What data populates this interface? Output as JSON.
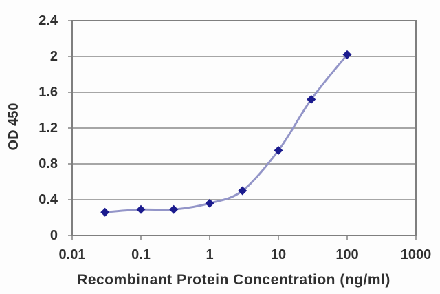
{
  "chart_data": {
    "type": "line",
    "title": "",
    "xlabel": "Recombinant Protein Concentration (ng/ml)",
    "ylabel": "OD 450",
    "xscale": "log",
    "xlim": [
      0.01,
      1000
    ],
    "ylim": [
      0,
      2.4
    ],
    "xticks": [
      0.01,
      0.1,
      1,
      10,
      100,
      1000
    ],
    "xtick_labels": [
      "0.01",
      "0.1",
      "1",
      "10",
      "100",
      "1000"
    ],
    "yticks": [
      0,
      0.4,
      0.8,
      1.2,
      1.6,
      2,
      2.4
    ],
    "ytick_labels": [
      "0",
      "0.4",
      "0.8",
      "1.2",
      "1.6",
      "2",
      "2.4"
    ],
    "grid": "horizontal",
    "legend_visible": false,
    "series": [
      {
        "name": "OD450",
        "x": [
          0.03,
          0.1,
          0.3,
          1,
          3,
          10,
          30,
          100
        ],
        "y": [
          0.26,
          0.29,
          0.29,
          0.36,
          0.5,
          0.95,
          1.52,
          2.02
        ],
        "marker": "diamond",
        "line_color": "#9395c8",
        "marker_color": "#1b1b8e"
      }
    ],
    "colors": {
      "grid": "#8a8a8a",
      "frame": "#7f7f7f",
      "tick": "#8a8a8a",
      "text": "#303030",
      "background": "#fdfdfd"
    }
  }
}
